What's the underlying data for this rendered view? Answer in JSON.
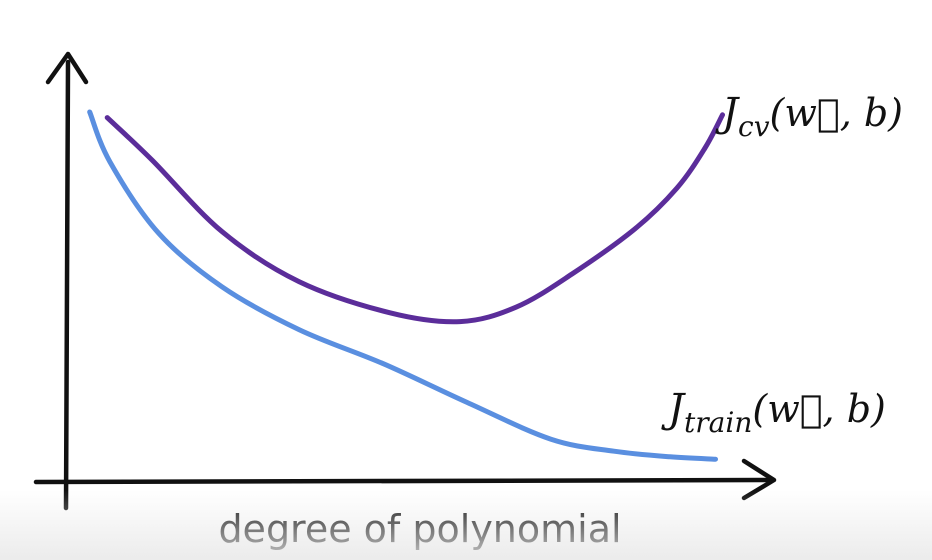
{
  "chart_data": {
    "type": "line",
    "xlabel": "degree of polynomial",
    "ylabel": "",
    "xlim": [
      0,
      10
    ],
    "ylim": [
      0,
      10
    ],
    "grid": false,
    "legend": "none",
    "series": [
      {
        "name": "J_cv(w⃗, b)",
        "label_parts": {
          "base": "J",
          "sub": "cv",
          "args": "(w⃗, b)"
        },
        "color": "#5b2d9a",
        "x": [
          0.56,
          1.2,
          2.2,
          3.3,
          4.6,
          5.6,
          6.4,
          7.2,
          8.1,
          8.7,
          9.1,
          9.35
        ],
        "y": [
          9.06,
          8.0,
          6.21,
          4.96,
          4.18,
          3.96,
          4.32,
          5.15,
          6.28,
          7.3,
          8.3,
          9.13
        ]
      },
      {
        "name": "J_train(w⃗, b)",
        "label_parts": {
          "base": "J",
          "sub": "train",
          "args": "(w⃗, b)"
        },
        "color": "#5a8fe0",
        "x": [
          0.31,
          0.6,
          1.3,
          2.2,
          3.3,
          4.5,
          5.7,
          6.9,
          7.8,
          8.6,
          9.25
        ],
        "y": [
          9.2,
          7.95,
          6.16,
          4.83,
          3.76,
          2.91,
          1.94,
          1.02,
          0.72,
          0.58,
          0.52
        ]
      }
    ]
  }
}
